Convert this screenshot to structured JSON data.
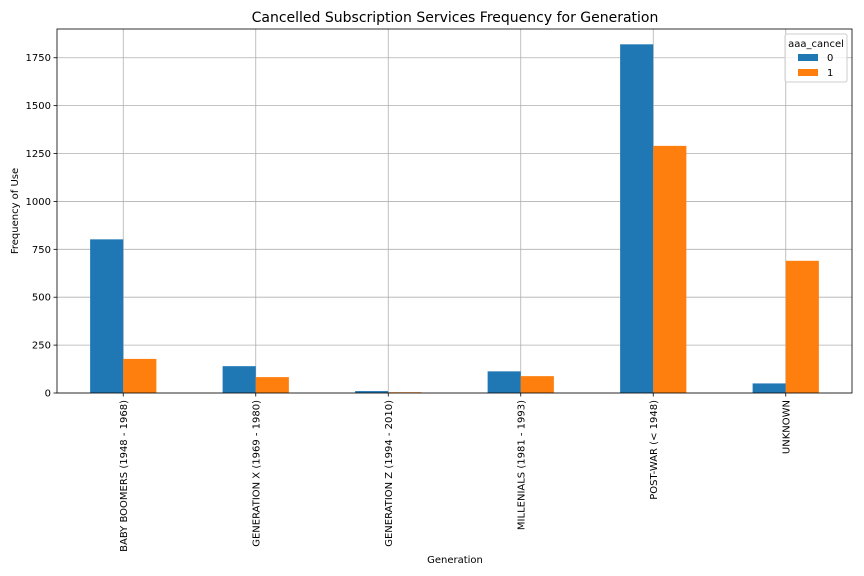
{
  "chart_data": {
    "type": "bar",
    "title": "Cancelled Subscription Services Frequency for Generation",
    "xlabel": "Generation",
    "ylabel": "Frequency of Use",
    "categories": [
      "BABY BOOMERS (1948 - 1968)",
      "GENERATION X (1969 - 1980)",
      "GENERATION Z (1994 - 2010)",
      "MILLENIALS (1981 - 1993)",
      "POST-WAR (< 1948)",
      "UNKNOWN"
    ],
    "series": [
      {
        "name": "0",
        "color": "#1f77b4",
        "values": [
          802,
          140,
          10,
          113,
          1820,
          50
        ]
      },
      {
        "name": "1",
        "color": "#ff7f0e",
        "values": [
          178,
          83,
          4,
          88,
          1290,
          690
        ]
      }
    ],
    "ylim": [
      0,
      1900
    ],
    "yticks": [
      0,
      250,
      500,
      750,
      1000,
      1250,
      1500,
      1750
    ],
    "grid": true,
    "legend": {
      "title": "aaa_cancel",
      "placement": "top-right"
    }
  }
}
